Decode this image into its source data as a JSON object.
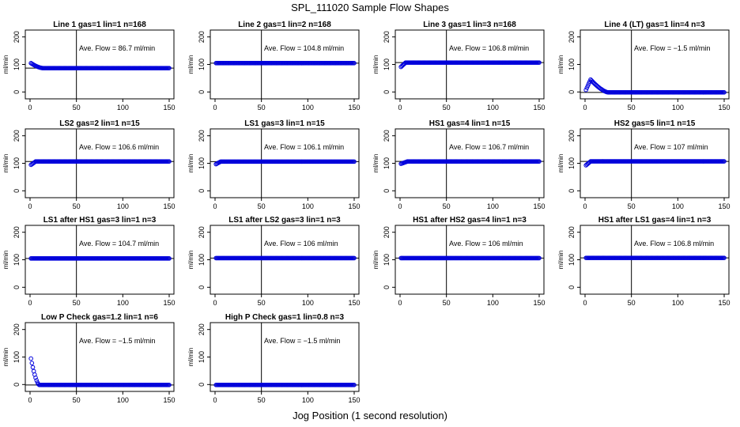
{
  "figure": {
    "title": "SPL_111020  Sample Flow Shapes",
    "xlabel": "Jog Position (1 second resolution)"
  },
  "chart_data": [
    {
      "type": "scatter",
      "title": "Line 1 gas=1 lin=1 n=168",
      "ylabel": "ml/min",
      "xlim": [
        0,
        150
      ],
      "ylim": [
        -25,
        225
      ],
      "yticks": [
        0,
        100,
        200
      ],
      "xticks": [
        0,
        50,
        100,
        150
      ],
      "vline_x": 50,
      "hline_y": 86.7,
      "annotation": "Ave. Flow =  86.7  ml/min",
      "shape": {
        "kind": "decay",
        "start": 107,
        "level": 86.7,
        "duration": 14
      }
    },
    {
      "type": "scatter",
      "title": "Line 2 gas=1 lin=2 n=168",
      "ylabel": "ml/min",
      "xlim": [
        0,
        150
      ],
      "ylim": [
        -25,
        225
      ],
      "yticks": [
        0,
        100,
        200
      ],
      "xticks": [
        0,
        50,
        100,
        150
      ],
      "vline_x": 50,
      "hline_y": 104.8,
      "annotation": "Ave. Flow = 104.8  ml/min",
      "shape": {
        "kind": "flat",
        "level": 104.8
      }
    },
    {
      "type": "scatter",
      "title": "Line 3 gas=1 lin=3 n=168",
      "ylabel": "ml/min",
      "xlim": [
        0,
        150
      ],
      "ylim": [
        -25,
        225
      ],
      "yticks": [
        0,
        100,
        200
      ],
      "xticks": [
        0,
        50,
        100,
        150
      ],
      "vline_x": 50,
      "hline_y": 106.8,
      "annotation": "Ave. Flow = 106.8  ml/min",
      "shape": {
        "kind": "rise",
        "start": 88,
        "level": 106.8,
        "duration": 6
      }
    },
    {
      "type": "scatter",
      "title": "Line 4 (LT) gas=1 lin=4 n=3",
      "ylabel": "ml/min",
      "xlim": [
        0,
        150
      ],
      "ylim": [
        -25,
        225
      ],
      "yticks": [
        0,
        100,
        200
      ],
      "xticks": [
        0,
        50,
        100,
        150
      ],
      "vline_x": 50,
      "hline_y": -1.5,
      "annotation": "Ave. Flow =  −1.5  ml/min",
      "shape": {
        "kind": "bump",
        "start": 0,
        "peak": 45,
        "peak_x": 6,
        "level": -1.5,
        "end_x": 25
      }
    },
    {
      "type": "scatter",
      "title": "LS2 gas=2 lin=1 n=15",
      "ylabel": "ml/min",
      "xlim": [
        0,
        150
      ],
      "ylim": [
        -25,
        225
      ],
      "yticks": [
        0,
        100,
        200
      ],
      "xticks": [
        0,
        50,
        100,
        150
      ],
      "vline_x": 50,
      "hline_y": 106.6,
      "annotation": "Ave. Flow = 106.6  ml/min",
      "shape": {
        "kind": "rise",
        "start": 92,
        "level": 106.6,
        "duration": 6
      }
    },
    {
      "type": "scatter",
      "title": "LS1 gas=3 lin=1 n=15",
      "ylabel": "ml/min",
      "xlim": [
        0,
        150
      ],
      "ylim": [
        -25,
        225
      ],
      "yticks": [
        0,
        100,
        200
      ],
      "xticks": [
        0,
        50,
        100,
        150
      ],
      "vline_x": 50,
      "hline_y": 106.1,
      "annotation": "Ave. Flow = 106.1  ml/min",
      "shape": {
        "kind": "rise",
        "start": 95,
        "level": 106.1,
        "duration": 6
      }
    },
    {
      "type": "scatter",
      "title": "HS1 gas=4 lin=1 n=15",
      "ylabel": "ml/min",
      "xlim": [
        0,
        150
      ],
      "ylim": [
        -25,
        225
      ],
      "yticks": [
        0,
        100,
        200
      ],
      "xticks": [
        0,
        50,
        100,
        150
      ],
      "vline_x": 50,
      "hline_y": 106.7,
      "annotation": "Ave. Flow = 106.7  ml/min",
      "shape": {
        "kind": "rise",
        "start": 97,
        "level": 106.7,
        "duration": 8
      }
    },
    {
      "type": "scatter",
      "title": "HS2 gas=5 lin=1 n=15",
      "ylabel": "ml/min",
      "xlim": [
        0,
        150
      ],
      "ylim": [
        -25,
        225
      ],
      "yticks": [
        0,
        100,
        200
      ],
      "xticks": [
        0,
        50,
        100,
        150
      ],
      "vline_x": 50,
      "hline_y": 107,
      "annotation": "Ave. Flow = 107  ml/min",
      "shape": {
        "kind": "rise",
        "start": 90,
        "level": 107,
        "duration": 6
      }
    },
    {
      "type": "scatter",
      "title": "LS1 after HS1 gas=3 lin=1 n=3",
      "ylabel": "ml/min",
      "xlim": [
        0,
        150
      ],
      "ylim": [
        -25,
        225
      ],
      "yticks": [
        0,
        100,
        200
      ],
      "xticks": [
        0,
        50,
        100,
        150
      ],
      "vline_x": 50,
      "hline_y": 104.7,
      "annotation": "Ave. Flow = 104.7  ml/min",
      "shape": {
        "kind": "flat",
        "level": 104.7
      }
    },
    {
      "type": "scatter",
      "title": "LS1 after LS2 gas=3 lin=1 n=3",
      "ylabel": "ml/min",
      "xlim": [
        0,
        150
      ],
      "ylim": [
        -25,
        225
      ],
      "yticks": [
        0,
        100,
        200
      ],
      "xticks": [
        0,
        50,
        100,
        150
      ],
      "vline_x": 50,
      "hline_y": 106,
      "annotation": "Ave. Flow = 106  ml/min",
      "shape": {
        "kind": "flat",
        "level": 106
      }
    },
    {
      "type": "scatter",
      "title": "HS1 after HS2 gas=4 lin=1 n=3",
      "ylabel": "ml/min",
      "xlim": [
        0,
        150
      ],
      "ylim": [
        -25,
        225
      ],
      "yticks": [
        0,
        100,
        200
      ],
      "xticks": [
        0,
        50,
        100,
        150
      ],
      "vline_x": 50,
      "hline_y": 106,
      "annotation": "Ave. Flow = 106  ml/min",
      "shape": {
        "kind": "flat",
        "level": 106
      }
    },
    {
      "type": "scatter",
      "title": "HS1 after LS1 gas=4 lin=1 n=3",
      "ylabel": "ml/min",
      "xlim": [
        0,
        150
      ],
      "ylim": [
        -25,
        225
      ],
      "yticks": [
        0,
        100,
        200
      ],
      "xticks": [
        0,
        50,
        100,
        150
      ],
      "vline_x": 50,
      "hline_y": 106.8,
      "annotation": "Ave. Flow = 106.8  ml/min",
      "shape": {
        "kind": "flat",
        "level": 106.8
      }
    },
    {
      "type": "scatter",
      "title": "Low P Check gas=1.2 lin=1 n=6",
      "ylabel": "ml/min",
      "xlim": [
        0,
        150
      ],
      "ylim": [
        -25,
        225
      ],
      "yticks": [
        0,
        100,
        200
      ],
      "xticks": [
        0,
        50,
        100,
        150
      ],
      "vline_x": 50,
      "hline_y": -1.5,
      "annotation": "Ave. Flow =  −1.5  ml/min",
      "shape": {
        "kind": "decay",
        "start": 112,
        "level": -1.5,
        "duration": 10
      }
    },
    {
      "type": "scatter",
      "title": "High P Check gas=1 lin=0.8 n=3",
      "ylabel": "ml/min",
      "xlim": [
        0,
        150
      ],
      "ylim": [
        -25,
        225
      ],
      "yticks": [
        0,
        100,
        200
      ],
      "xticks": [
        0,
        50,
        100,
        150
      ],
      "vline_x": 50,
      "hline_y": -1.5,
      "annotation": "Ave. Flow =  −1.5  ml/min",
      "shape": {
        "kind": "flat",
        "level": -1.5
      }
    }
  ]
}
